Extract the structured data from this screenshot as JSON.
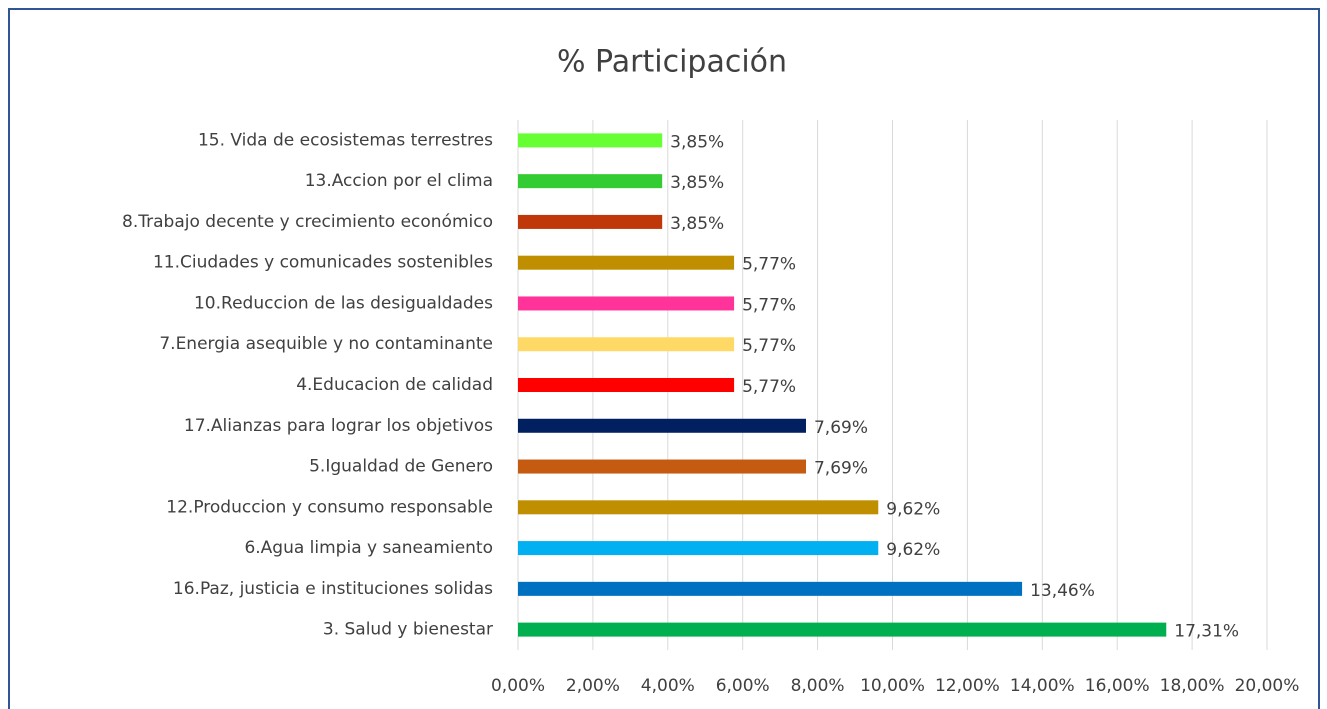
{
  "chart_data": {
    "type": "hbar",
    "title": "% Participación",
    "categories": [
      "15. Vida de ecosistemas terrestres",
      "13.Accion por el clima",
      "8.Trabajo decente y crecimiento económico",
      "11.Ciudades y comunicades sostenibles",
      "10.Reduccion de las desigualdades",
      "7.Energia asequible y no contaminante",
      "4.Educacion de calidad",
      "17.Alianzas para lograr los objetivos",
      "5.Igualdad de Genero",
      "12.Produccion y consumo responsable",
      "6.Agua limpia y saneamiento",
      "16.Paz, justicia e instituciones solidas",
      "3. Salud y bienestar"
    ],
    "values": [
      3.85,
      3.85,
      3.85,
      5.77,
      5.77,
      5.77,
      5.77,
      7.69,
      7.69,
      9.62,
      9.62,
      13.46,
      17.31
    ],
    "value_labels": [
      "3,85%",
      "3,85%",
      "3,85%",
      "5,77%",
      "5,77%",
      "5,77%",
      "5,77%",
      "7,69%",
      "7,69%",
      "9,62%",
      "9,62%",
      "13,46%",
      "17,31%"
    ],
    "colors": [
      "#66ff33",
      "#33cc33",
      "#c0370a",
      "#bf8f00",
      "#ff3399",
      "#ffd966",
      "#ff0000",
      "#002060",
      "#c55a11",
      "#bf8f00",
      "#00b0f0",
      "#0070c0",
      "#00b050"
    ],
    "xlim": [
      0,
      20
    ],
    "xticks": [
      {
        "value": 0,
        "label": "0,00%"
      },
      {
        "value": 2,
        "label": "2,00%"
      },
      {
        "value": 4,
        "label": "4,00%"
      },
      {
        "value": 6,
        "label": "6,00%"
      },
      {
        "value": 8,
        "label": "8,00%"
      },
      {
        "value": 10,
        "label": "10,00%"
      },
      {
        "value": 12,
        "label": "12,00%"
      },
      {
        "value": 14,
        "label": "14,00%"
      },
      {
        "value": 16,
        "label": "16,00%"
      },
      {
        "value": 18,
        "label": "18,00%"
      },
      {
        "value": 20,
        "label": "20,00%"
      }
    ],
    "grid": true
  }
}
